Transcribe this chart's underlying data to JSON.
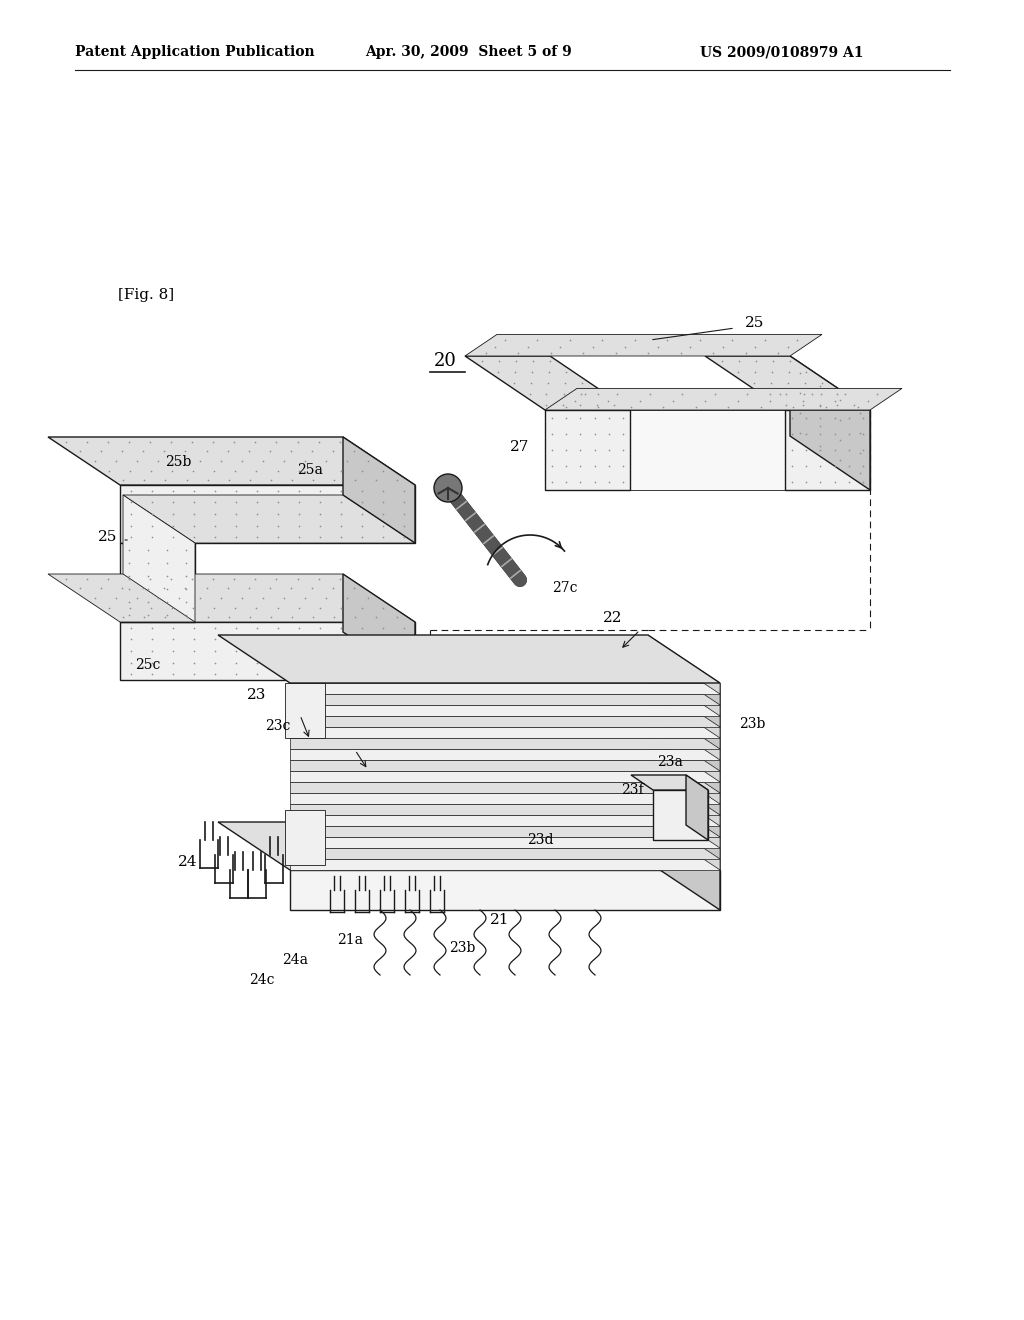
{
  "bg": "#ffffff",
  "lc": "#1a1a1a",
  "fc_light": "#f0f0f0",
  "fc_mid": "#e0e0e0",
  "fc_dark": "#c8c8c8",
  "fc_dot": "#e8e8e8",
  "dot_color": "#909090",
  "header_left": "Patent Application Publication",
  "header_center": "Apr. 30, 2009  Sheet 5 of 9",
  "header_right": "US 2009/0108979 A1",
  "fig_label": "[Fig. 8]",
  "lw": 1.0,
  "lw_thin": 0.6,
  "lw_thick": 1.5
}
